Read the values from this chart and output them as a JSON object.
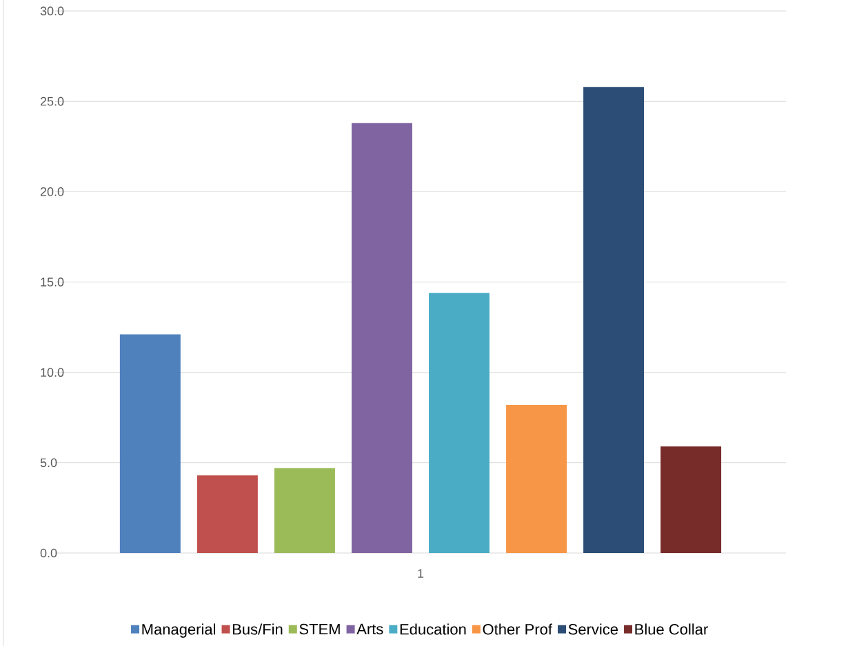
{
  "chart_data": {
    "type": "bar",
    "categories": [
      "1"
    ],
    "series": [
      {
        "name": "Managerial",
        "color": "#4f81bd",
        "values": [
          12.1
        ]
      },
      {
        "name": "Bus/Fin",
        "color": "#c0504d",
        "values": [
          4.3
        ]
      },
      {
        "name": "STEM",
        "color": "#9bbb59",
        "values": [
          4.7
        ]
      },
      {
        "name": "Arts",
        "color": "#8064a2",
        "values": [
          23.8
        ]
      },
      {
        "name": "Education",
        "color": "#4bacc6",
        "values": [
          14.4
        ]
      },
      {
        "name": "Other Prof",
        "color": "#f79646",
        "values": [
          8.2
        ]
      },
      {
        "name": "Service",
        "color": "#2c4d75",
        "values": [
          25.8
        ]
      },
      {
        "name": "Blue Collar",
        "color": "#772c2a",
        "values": [
          5.9
        ]
      }
    ],
    "ylim": [
      0,
      30
    ],
    "yticks": [
      {
        "value": 0,
        "label": "0.0"
      },
      {
        "value": 5,
        "label": "5.0"
      },
      {
        "value": 10,
        "label": "10.0"
      },
      {
        "value": 15,
        "label": "15.0"
      },
      {
        "value": 20,
        "label": "20.0"
      },
      {
        "value": 25,
        "label": "25.0"
      },
      {
        "value": 30,
        "label": "30.0"
      }
    ],
    "grid": "y",
    "legend": "bottom"
  }
}
